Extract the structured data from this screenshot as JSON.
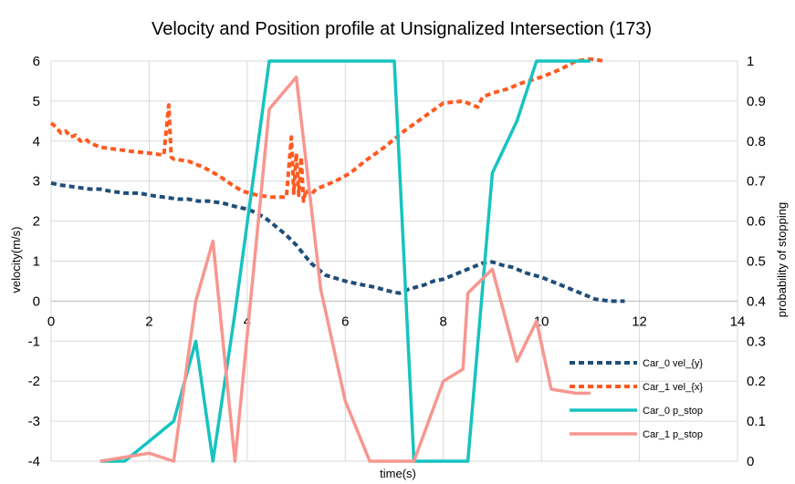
{
  "chart_data": {
    "type": "line",
    "title": "Velocity and Position profile at Unsignalized Intersection (173)",
    "xlabel": "time(s)",
    "ylabel_left": "velocity(m/s)",
    "ylabel_right": "probability of stopping",
    "xlim": [
      0,
      14
    ],
    "ylim_left": [
      -4,
      6
    ],
    "ylim_right": [
      0,
      1
    ],
    "x_ticks": [
      0,
      2,
      4,
      6,
      8,
      10,
      12,
      14
    ],
    "y_left_ticks": [
      -4,
      -3,
      -2,
      -1,
      0,
      1,
      2,
      3,
      4,
      5,
      6
    ],
    "y_right_ticks": [
      0,
      0.1,
      0.2,
      0.3,
      0.4,
      0.5,
      0.6,
      0.7,
      0.8,
      0.9,
      1
    ],
    "grid": true,
    "legend_position": "bottom-right",
    "series": [
      {
        "name": "Car_0 vel_{y}",
        "axis": "left",
        "style": "dashed",
        "color": "#1f4e79",
        "x": [
          0,
          0.2,
          0.5,
          0.8,
          1,
          1.2,
          1.5,
          1.8,
          2,
          2.3,
          2.6,
          2.8,
          3,
          3.2,
          3.5,
          3.8,
          4,
          4.2,
          4.4,
          4.6,
          4.8,
          5,
          5.3,
          5.6,
          6,
          6.3,
          6.6,
          6.9,
          7.1,
          7.3,
          7.6,
          7.8,
          8,
          8.3,
          8.6,
          8.8,
          9,
          9.2,
          9.4,
          9.7,
          10,
          10.3,
          10.6,
          10.9,
          11.1,
          11.4,
          11.7
        ],
        "y": [
          2.95,
          2.9,
          2.85,
          2.8,
          2.8,
          2.75,
          2.7,
          2.7,
          2.65,
          2.6,
          2.55,
          2.55,
          2.5,
          2.5,
          2.45,
          2.35,
          2.3,
          2.2,
          2.05,
          1.85,
          1.65,
          1.4,
          0.95,
          0.65,
          0.5,
          0.42,
          0.35,
          0.25,
          0.2,
          0.3,
          0.4,
          0.5,
          0.55,
          0.7,
          0.85,
          0.95,
          0.98,
          0.9,
          0.85,
          0.7,
          0.6,
          0.45,
          0.3,
          0.15,
          0.05,
          0.0,
          0.0
        ]
      },
      {
        "name": "Car_1 vel_{x}",
        "axis": "left",
        "style": "dashed",
        "color": "#ff5a1f",
        "x": [
          0,
          0.1,
          0.2,
          0.3,
          0.4,
          0.5,
          0.6,
          0.7,
          0.8,
          1,
          1.3,
          1.6,
          2,
          2.3,
          2.4,
          2.45,
          2.5,
          2.8,
          3.1,
          3.4,
          3.7,
          3.9,
          4.2,
          4.5,
          4.8,
          4.9,
          4.95,
          5.0,
          5.05,
          5.1,
          5.15,
          5.2,
          5.3,
          5.4,
          5.5,
          5.8,
          6.1,
          6.4,
          6.8,
          7.2,
          7.6,
          8,
          8.4,
          8.7,
          8.8,
          9,
          9.3,
          9.6,
          10,
          10.4,
          10.7,
          11,
          11.3
        ],
        "y": [
          4.45,
          4.35,
          4.2,
          4.25,
          4.1,
          4.15,
          4.0,
          4.05,
          3.95,
          3.85,
          3.8,
          3.75,
          3.7,
          3.65,
          4.9,
          3.6,
          3.55,
          3.5,
          3.35,
          3.15,
          2.9,
          2.75,
          2.65,
          2.6,
          2.6,
          4.1,
          2.7,
          3.7,
          2.65,
          3.6,
          2.5,
          2.8,
          2.65,
          2.8,
          2.85,
          3.0,
          3.2,
          3.5,
          3.85,
          4.25,
          4.6,
          4.95,
          5.0,
          4.85,
          5.1,
          5.2,
          5.3,
          5.45,
          5.6,
          5.8,
          6.0,
          6.05,
          6.0
        ]
      },
      {
        "name": "Car_0  p_stop",
        "axis": "right",
        "style": "solid",
        "color": "#17c3c0",
        "x": [
          1,
          1.5,
          2,
          2.5,
          2.95,
          3.3,
          3.75,
          4.45,
          5,
          5.5,
          6,
          6.5,
          7,
          7.4,
          8.0,
          8.4,
          8.5,
          9.0,
          9.5,
          9.9,
          10.2,
          10.7,
          11.0
        ],
        "y": [
          0,
          0,
          0.05,
          0.1,
          0.3,
          0,
          0.37,
          1,
          1,
          1,
          1,
          1,
          1,
          0,
          0,
          0,
          0,
          0.72,
          0.85,
          1,
          1,
          1,
          1
        ]
      },
      {
        "name": "Car_1 p_stop",
        "axis": "right",
        "style": "solid",
        "color": "#f79690",
        "x": [
          1,
          1.5,
          2,
          2.5,
          2.95,
          3.3,
          3.75,
          4.45,
          5,
          5.5,
          6,
          6.5,
          7,
          7.4,
          8.0,
          8.4,
          8.5,
          9.0,
          9.5,
          9.9,
          10.2,
          10.7,
          11.0
        ],
        "y": [
          0,
          0.01,
          0.02,
          0,
          0.4,
          0.55,
          0,
          0.88,
          0.96,
          0.43,
          0.15,
          0,
          0,
          0,
          0.2,
          0.23,
          0.42,
          0.48,
          0.25,
          0.35,
          0.18,
          0.17,
          0.17
        ]
      }
    ]
  }
}
